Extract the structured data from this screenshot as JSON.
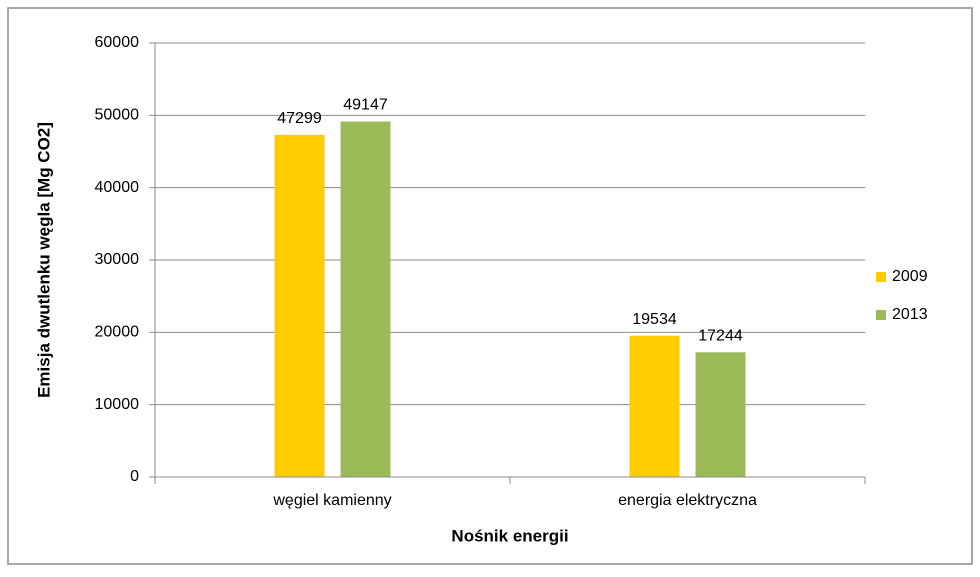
{
  "chart_data": {
    "type": "bar",
    "categories": [
      "węgiel kamienny",
      "energia elektryczna"
    ],
    "series": [
      {
        "name": "2009",
        "color": "#ffcc00",
        "values": [
          47299,
          19534
        ]
      },
      {
        "name": "2013",
        "color": "#9bbb59",
        "values": [
          49147,
          17244
        ]
      }
    ],
    "xlabel": "Nośnik energii",
    "ylabel": "Emisja dwutlenku węgla [Mg CO2]",
    "ylim": [
      0,
      60000
    ],
    "yticks": [
      0,
      10000,
      20000,
      30000,
      40000,
      50000,
      60000
    ],
    "grid": true,
    "legend": "right"
  }
}
